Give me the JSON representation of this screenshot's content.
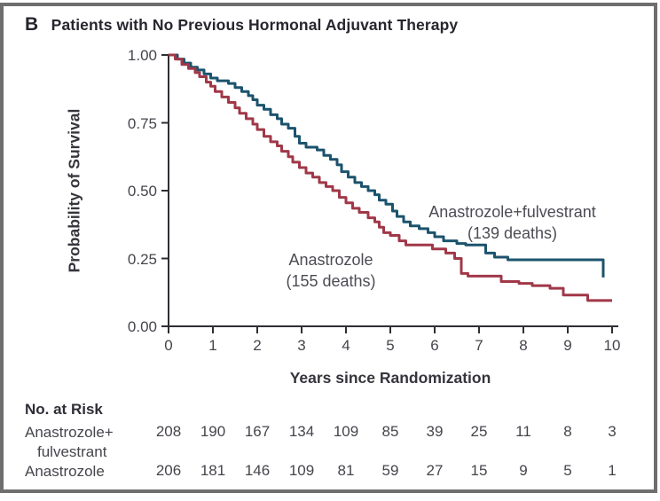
{
  "panel": {
    "letter": "B",
    "title": "Patients with No Previous Hormonal Adjuvant Therapy"
  },
  "colors": {
    "combo_curve": "#1c536d",
    "mono_curve": "#a03848",
    "axis": "#2e2e33",
    "text": "#45454c",
    "frame": "#6e6e6e"
  },
  "chart_data": {
    "type": "line",
    "subtype": "kaplan-meier-step",
    "title": "Patients with No Previous Hormonal Adjuvant Therapy",
    "xlabel": "Years since Randomization",
    "ylabel": "Probability of Survival",
    "xlim": [
      0,
      10
    ],
    "ylim": [
      0,
      1
    ],
    "xticks": [
      0,
      1,
      2,
      3,
      4,
      5,
      6,
      7,
      8,
      9,
      10
    ],
    "yticks": [
      0,
      0.25,
      0.5,
      0.75,
      1
    ],
    "ytick_labels": [
      "0.00",
      "0.25",
      "0.50",
      "0.75",
      "1.00"
    ],
    "grid": false,
    "legend_position": "inline-annotations",
    "series": [
      {
        "name": "Anastrozole+fulvestrant",
        "deaths": 139,
        "color": "#1c536d",
        "points": [
          [
            0,
            1.0
          ],
          [
            0.2,
            0.985
          ],
          [
            0.35,
            0.97
          ],
          [
            0.5,
            0.955
          ],
          [
            0.65,
            0.945
          ],
          [
            0.8,
            0.93
          ],
          [
            0.95,
            0.915
          ],
          [
            1.1,
            0.905
          ],
          [
            1.35,
            0.895
          ],
          [
            1.5,
            0.88
          ],
          [
            1.65,
            0.865
          ],
          [
            1.8,
            0.85
          ],
          [
            1.9,
            0.835
          ],
          [
            2.0,
            0.815
          ],
          [
            2.15,
            0.8
          ],
          [
            2.3,
            0.78
          ],
          [
            2.45,
            0.765
          ],
          [
            2.55,
            0.745
          ],
          [
            2.7,
            0.73
          ],
          [
            2.85,
            0.7
          ],
          [
            2.95,
            0.675
          ],
          [
            3.1,
            0.66
          ],
          [
            3.35,
            0.65
          ],
          [
            3.5,
            0.63
          ],
          [
            3.65,
            0.615
          ],
          [
            3.8,
            0.595
          ],
          [
            3.9,
            0.57
          ],
          [
            4.05,
            0.55
          ],
          [
            4.2,
            0.53
          ],
          [
            4.35,
            0.515
          ],
          [
            4.5,
            0.5
          ],
          [
            4.65,
            0.485
          ],
          [
            4.75,
            0.465
          ],
          [
            4.9,
            0.45
          ],
          [
            5.05,
            0.425
          ],
          [
            5.15,
            0.405
          ],
          [
            5.3,
            0.385
          ],
          [
            5.45,
            0.37
          ],
          [
            5.65,
            0.36
          ],
          [
            5.85,
            0.345
          ],
          [
            6.0,
            0.33
          ],
          [
            6.2,
            0.315
          ],
          [
            6.5,
            0.305
          ],
          [
            6.7,
            0.3
          ],
          [
            7.15,
            0.27
          ],
          [
            7.35,
            0.255
          ],
          [
            7.65,
            0.245
          ],
          [
            9.8,
            0.245
          ],
          [
            9.8,
            0.18
          ]
        ]
      },
      {
        "name": "Anastrozole",
        "deaths": 155,
        "color": "#a03848",
        "points": [
          [
            0,
            1.0
          ],
          [
            0.15,
            0.985
          ],
          [
            0.3,
            0.965
          ],
          [
            0.45,
            0.95
          ],
          [
            0.6,
            0.935
          ],
          [
            0.7,
            0.92
          ],
          [
            0.85,
            0.9
          ],
          [
            0.95,
            0.885
          ],
          [
            1.05,
            0.865
          ],
          [
            1.2,
            0.845
          ],
          [
            1.35,
            0.825
          ],
          [
            1.5,
            0.805
          ],
          [
            1.6,
            0.785
          ],
          [
            1.75,
            0.765
          ],
          [
            1.9,
            0.745
          ],
          [
            2.0,
            0.725
          ],
          [
            2.15,
            0.7
          ],
          [
            2.3,
            0.68
          ],
          [
            2.45,
            0.665
          ],
          [
            2.55,
            0.645
          ],
          [
            2.7,
            0.625
          ],
          [
            2.8,
            0.605
          ],
          [
            2.95,
            0.585
          ],
          [
            3.1,
            0.565
          ],
          [
            3.25,
            0.55
          ],
          [
            3.4,
            0.53
          ],
          [
            3.55,
            0.515
          ],
          [
            3.7,
            0.5
          ],
          [
            3.85,
            0.475
          ],
          [
            4.0,
            0.455
          ],
          [
            4.15,
            0.435
          ],
          [
            4.3,
            0.42
          ],
          [
            4.5,
            0.4
          ],
          [
            4.65,
            0.385
          ],
          [
            4.75,
            0.365
          ],
          [
            4.85,
            0.345
          ],
          [
            5.0,
            0.335
          ],
          [
            5.2,
            0.315
          ],
          [
            5.35,
            0.3
          ],
          [
            5.95,
            0.285
          ],
          [
            6.25,
            0.27
          ],
          [
            6.45,
            0.25
          ],
          [
            6.6,
            0.195
          ],
          [
            6.75,
            0.185
          ],
          [
            7.5,
            0.165
          ],
          [
            7.9,
            0.158
          ],
          [
            8.2,
            0.15
          ],
          [
            8.6,
            0.14
          ],
          [
            8.9,
            0.115
          ],
          [
            9.45,
            0.095
          ],
          [
            10.0,
            0.095
          ]
        ]
      }
    ],
    "annotations": [
      {
        "id": "combo",
        "text": "Anastrozole+fulvestrant\n(139 deaths)",
        "x": 7.75,
        "y": 0.383
      },
      {
        "id": "mono",
        "text": "Anastrozole\n(155 deaths)",
        "x": 3.66,
        "y": 0.206
      }
    ]
  },
  "at_risk": {
    "heading": "No. at Risk",
    "rows": [
      {
        "label": "Anastrozole+\nfulvestrant",
        "values": [
          208,
          190,
          167,
          134,
          109,
          85,
          39,
          25,
          11,
          8,
          3
        ]
      },
      {
        "label": "Anastrozole",
        "values": [
          206,
          181,
          146,
          109,
          81,
          59,
          27,
          15,
          9,
          5,
          1
        ]
      }
    ]
  }
}
